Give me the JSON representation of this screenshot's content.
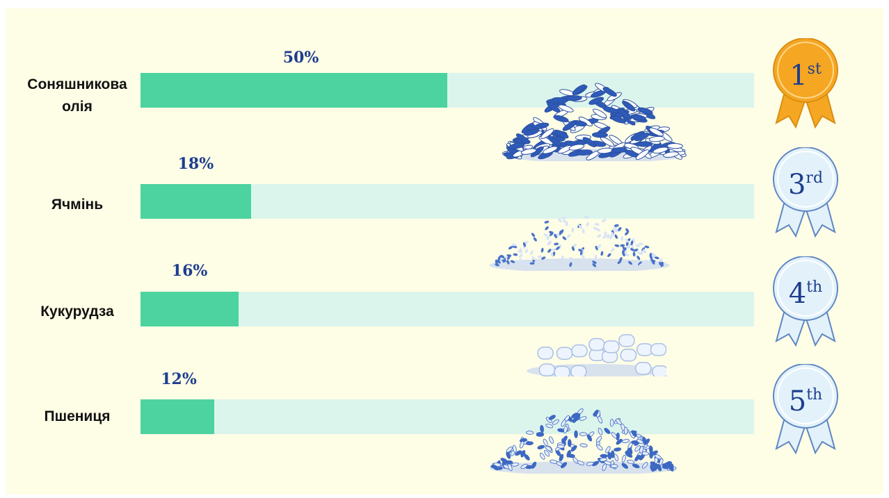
{
  "chart_data": {
    "type": "bar",
    "orientation": "horizontal",
    "categories": [
      "Соняшникова олія",
      "Ячмінь",
      "Кукурудза",
      "Пшениця"
    ],
    "values": [
      50,
      18,
      16,
      12
    ],
    "value_labels": [
      "50%",
      "18%",
      "16%",
      "12%"
    ],
    "xlim": [
      0,
      100
    ],
    "ranks": [
      {
        "num": "1",
        "suffix": "st"
      },
      {
        "num": "3",
        "suffix": "rd"
      },
      {
        "num": "4",
        "suffix": "th"
      },
      {
        "num": "5",
        "suffix": "th"
      }
    ],
    "pile_icons": [
      "sunflower-seeds-pile-icon",
      "barley-pile-icon",
      "corn-kernels-pile-icon",
      "wheat-pile-icon"
    ],
    "colors": {
      "background": "#fefde6",
      "bar_fill": "#4cd39f",
      "bar_track": "#dcf5ec",
      "value_text": "#1e3d8f",
      "medal_gold": "#f5a623",
      "medal_blue_fill": "#e3f2fa",
      "medal_blue_stroke": "#5f86c4",
      "pile": "#3d68c2"
    }
  }
}
